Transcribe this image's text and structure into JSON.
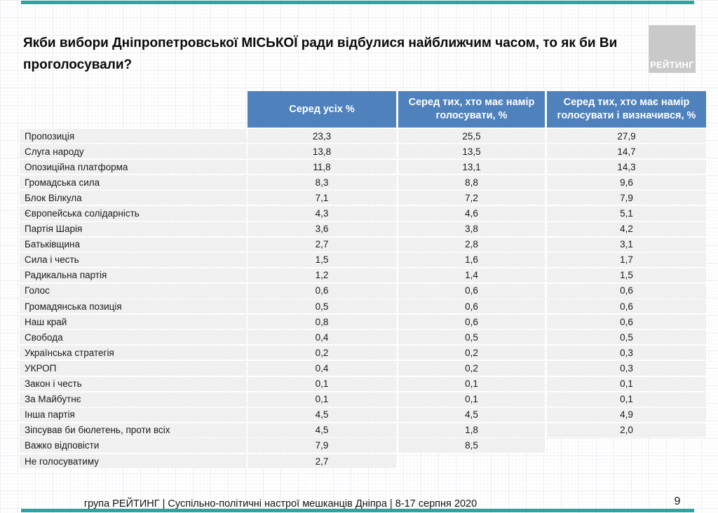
{
  "slide": {
    "title": "Якби вибори Дніпропетровської МІСЬКОЇ ради відбулися найближчим часом, то як би Ви проголосували?",
    "logo_text": "РЕЙТИНГ",
    "footer": "група РЕЙТИНГ  | Суспільно-політичні настрої мешканців Дніпра | 8-17 серпня 2020",
    "page_number": "9",
    "colors": {
      "accent_teal": "#29a5a3",
      "header_blue": "#4f81bd",
      "row_gray": "#f0f0f0",
      "logo_gray": "#c9c9c9"
    }
  },
  "chart_data": {
    "type": "table",
    "title": "Якби вибори Дніпропетровської МІСЬКОЇ ради відбулися найближчим часом, то як би Ви проголосували?",
    "columns": [
      "Серед усіх %",
      "Серед тих, хто має намір голосувати, %",
      "Серед тих, хто має намір голосувати і визначився, %"
    ],
    "rows": [
      {
        "label": "Пропозиція",
        "values": [
          "23,3",
          "25,5",
          "27,9"
        ]
      },
      {
        "label": "Слуга народу",
        "values": [
          "13,8",
          "13,5",
          "14,7"
        ]
      },
      {
        "label": "Опозиційна платформа",
        "values": [
          "11,8",
          "13,1",
          "14,3"
        ]
      },
      {
        "label": "Громадська сила",
        "values": [
          "8,3",
          "8,8",
          "9,6"
        ]
      },
      {
        "label": "Блок Вілкула",
        "values": [
          "7,1",
          "7,2",
          "7,9"
        ]
      },
      {
        "label": "Європейська солідарність",
        "values": [
          "4,3",
          "4,6",
          "5,1"
        ]
      },
      {
        "label": "Партія Шарія",
        "values": [
          "3,6",
          "3,8",
          "4,2"
        ]
      },
      {
        "label": "Батьківщина",
        "values": [
          "2,7",
          "2,8",
          "3,1"
        ]
      },
      {
        "label": "Сила і честь",
        "values": [
          "1,5",
          "1,6",
          "1,7"
        ]
      },
      {
        "label": "Радикальна партія",
        "values": [
          "1,2",
          "1,4",
          "1,5"
        ]
      },
      {
        "label": "Голос",
        "values": [
          "0,6",
          "0,6",
          "0,6"
        ]
      },
      {
        "label": "Громадянська позиція",
        "values": [
          "0,5",
          "0,6",
          "0,6"
        ]
      },
      {
        "label": "Наш край",
        "values": [
          "0,8",
          "0,6",
          "0,6"
        ]
      },
      {
        "label": "Свобода",
        "values": [
          "0,4",
          "0,5",
          "0,5"
        ]
      },
      {
        "label": "Українська стратегія",
        "values": [
          "0,2",
          "0,2",
          "0,3"
        ]
      },
      {
        "label": "УКРОП",
        "values": [
          "0,4",
          "0,2",
          "0,3"
        ]
      },
      {
        "label": "Закон і честь",
        "values": [
          "0,1",
          "0,1",
          "0,1"
        ]
      },
      {
        "label": "За Майбутнє",
        "values": [
          "0,1",
          "0,1",
          "0,1"
        ]
      },
      {
        "label": "Інша партія",
        "values": [
          "4,5",
          "4,5",
          "4,9"
        ]
      },
      {
        "label": "Зіпсував би бюлетень, проти всіх",
        "values": [
          "4,5",
          "1,8",
          "2,0"
        ]
      },
      {
        "label": "Важко відповісти",
        "values": [
          "7,9",
          "8,5",
          null
        ]
      },
      {
        "label": "Не голосуватиму",
        "values": [
          "2,7",
          null,
          null
        ]
      }
    ]
  }
}
